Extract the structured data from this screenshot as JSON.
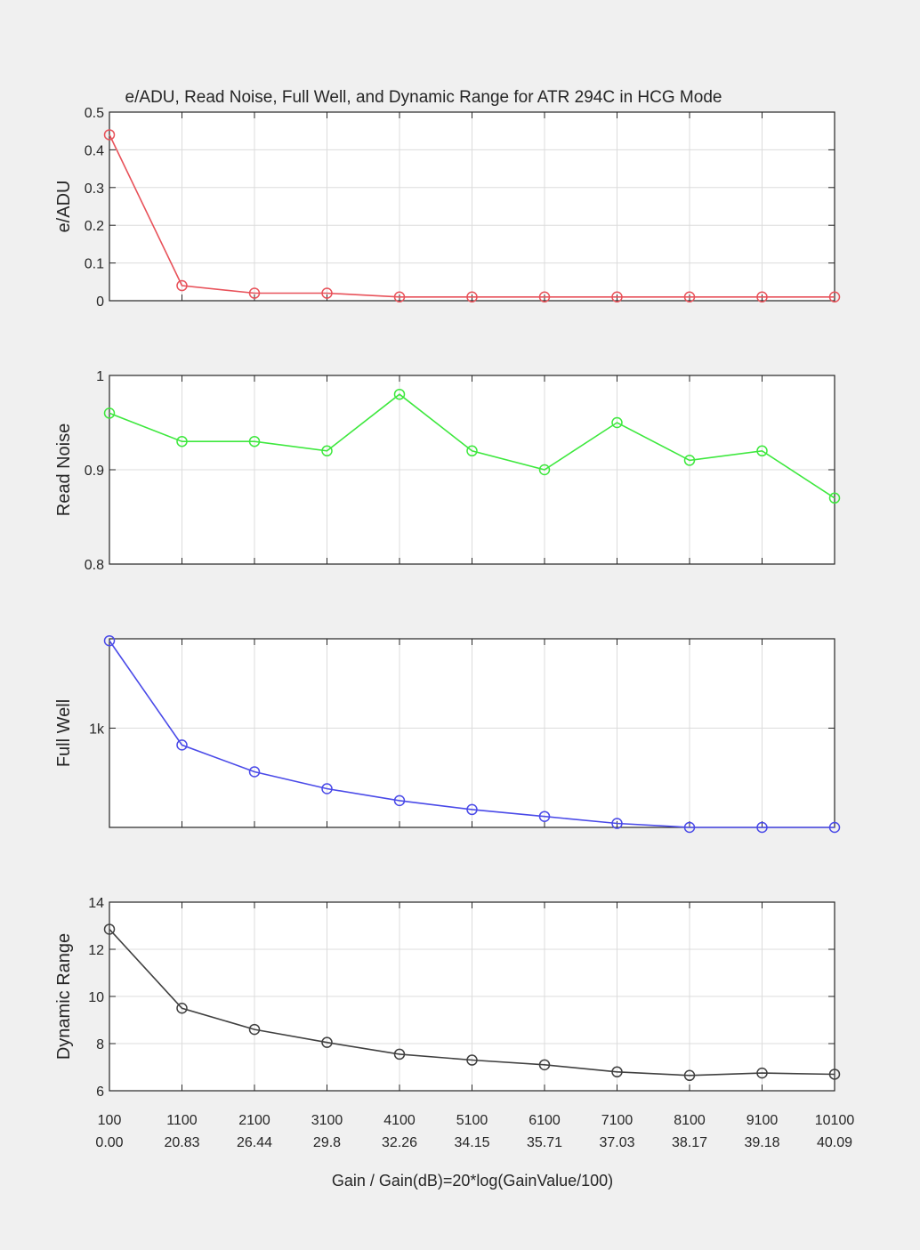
{
  "figure": {
    "title": "e/ADU, Read Noise, Full Well, and Dynamic Range for  ATR 294C  in HCG Mode",
    "xlabel": "Gain / Gain(dB)=20*log(GainValue/100)"
  },
  "chart_data": [
    {
      "type": "line",
      "ylabel": "e/ADU",
      "color": "#e8525a",
      "x": [
        100,
        1100,
        2100,
        3100,
        4100,
        5100,
        6100,
        7100,
        8100,
        9100,
        10100
      ],
      "values": [
        0.44,
        0.04,
        0.02,
        0.02,
        0.01,
        0.01,
        0.01,
        0.01,
        0.01,
        0.01,
        0.01
      ],
      "ylim": [
        0,
        0.5
      ],
      "yticks": [
        0,
        0.1,
        0.2,
        0.3,
        0.4,
        0.5
      ],
      "ytick_labels": [
        "0",
        "0.1",
        "0.2",
        "0.3",
        "0.4",
        "0.5"
      ],
      "grid": true
    },
    {
      "type": "line",
      "ylabel": "Read Noise",
      "color": "#3ee83e",
      "x": [
        100,
        1100,
        2100,
        3100,
        4100,
        5100,
        6100,
        7100,
        8100,
        9100,
        10100
      ],
      "values": [
        0.96,
        0.93,
        0.93,
        0.92,
        0.98,
        0.92,
        0.9,
        0.95,
        0.91,
        0.92,
        0.87
      ],
      "ylim": [
        0.8,
        1.0
      ],
      "yticks": [
        0.8,
        0.9,
        1.0
      ],
      "ytick_labels": [
        "0.8",
        "0.9",
        "1"
      ],
      "grid": true
    },
    {
      "type": "line",
      "ylabel": "Full Well",
      "color": "#4a4ae8",
      "x": [
        100,
        1100,
        2100,
        3100,
        4100,
        5100,
        6100,
        7100,
        8100,
        9100,
        10100
      ],
      "values": [
        1880,
        830,
        560,
        390,
        270,
        180,
        110,
        40,
        0,
        0,
        0
      ],
      "ylim": [
        0,
        1900
      ],
      "yticks": [
        1000
      ],
      "ytick_labels": [
        "1k"
      ],
      "grid": true
    },
    {
      "type": "line",
      "ylabel": "Dynamic Range",
      "color": "#404040",
      "x": [
        100,
        1100,
        2100,
        3100,
        4100,
        5100,
        6100,
        7100,
        8100,
        9100,
        10100
      ],
      "values": [
        12.85,
        9.5,
        8.6,
        8.05,
        7.55,
        7.3,
        7.1,
        6.8,
        6.65,
        6.75,
        6.7
      ],
      "ylim": [
        6,
        14
      ],
      "yticks": [
        6,
        8,
        10,
        12,
        14
      ],
      "ytick_labels": [
        "6",
        "8",
        "10",
        "12",
        "14"
      ],
      "grid": true,
      "xtick_labels": [
        "100",
        "1100",
        "2100",
        "3100",
        "4100",
        "5100",
        "6100",
        "7100",
        "8100",
        "9100",
        "10100"
      ],
      "xtick_labels_db": [
        "0.00",
        "20.83",
        "26.44",
        "29.8",
        "32.26",
        "34.15",
        "35.71",
        "37.03",
        "38.17",
        "39.18",
        "40.09"
      ]
    }
  ]
}
